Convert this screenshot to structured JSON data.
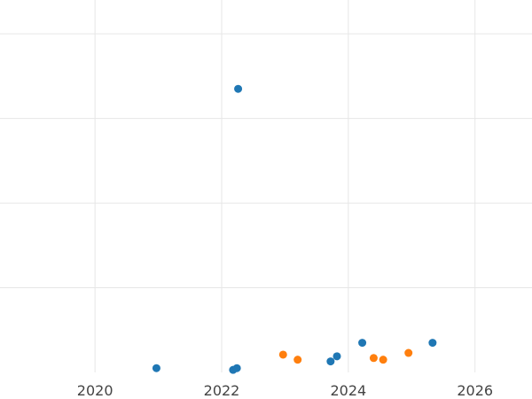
{
  "chart_data": {
    "type": "scatter",
    "title": "",
    "xlabel": "",
    "ylabel": "",
    "xlim": [
      2018.5,
      2026.9
    ],
    "ylim": [
      0,
      4.4
    ],
    "x_ticks": [
      2020,
      2022,
      2024,
      2026
    ],
    "x_tick_labels": [
      "2020",
      "2022",
      "2024",
      "2026"
    ],
    "y_gridlines": [
      1,
      2,
      3,
      4
    ],
    "grid": true,
    "legend": "none",
    "series": [
      {
        "color": "#1f77b4",
        "points": [
          {
            "x": 2020.97,
            "y": 0.05
          },
          {
            "x": 2022.18,
            "y": 0.03
          },
          {
            "x": 2022.24,
            "y": 0.05
          },
          {
            "x": 2022.26,
            "y": 3.35
          },
          {
            "x": 2023.72,
            "y": 0.13
          },
          {
            "x": 2023.82,
            "y": 0.19
          },
          {
            "x": 2024.22,
            "y": 0.35
          },
          {
            "x": 2025.33,
            "y": 0.35
          }
        ]
      },
      {
        "color": "#ff7f0e",
        "points": [
          {
            "x": 2022.97,
            "y": 0.21
          },
          {
            "x": 2023.2,
            "y": 0.15
          },
          {
            "x": 2024.4,
            "y": 0.17
          },
          {
            "x": 2024.55,
            "y": 0.15
          },
          {
            "x": 2024.95,
            "y": 0.23
          }
        ]
      }
    ]
  }
}
